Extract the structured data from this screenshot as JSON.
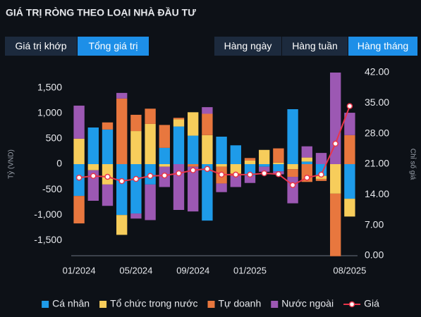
{
  "controls": {
    "left_tabs": [
      "Giá trị khớp",
      "Tổng giá trị"
    ],
    "left_active": 1,
    "right_tabs": [
      "Hàng ngày",
      "Hàng tuần",
      "Hàng tháng"
    ],
    "right_active": 2
  },
  "chart_data": {
    "type": "bar",
    "stacked": true,
    "title": "GIÁ TRỊ RÒNG THEO LOẠI NHÀ ĐẦU TƯ",
    "y_label": "Tỷ (VND)",
    "y2_label": "Chỉ số giá",
    "categories": [
      "01/2024",
      null,
      null,
      null,
      "05/2024",
      null,
      null,
      null,
      "09/2024",
      null,
      null,
      null,
      "01/2025",
      null,
      null,
      null,
      null,
      null,
      null,
      "08/2025"
    ],
    "series": [
      {
        "name": "Cá nhân",
        "color": "#1e9be9",
        "values": [
          -625,
          720,
          680,
          -1000,
          -970,
          -400,
          320,
          740,
          560,
          -1110,
          540,
          370,
          -230,
          -50,
          -140,
          1080,
          50,
          -230,
          0,
          -680
        ]
      },
      {
        "name": "Tổ chức trong nước",
        "color": "#f7cd5b",
        "values": [
          500,
          -120,
          -400,
          -390,
          650,
          790,
          -50,
          140,
          460,
          570,
          -50,
          -180,
          70,
          280,
          30,
          -100,
          80,
          -60,
          -580,
          -350
        ]
      },
      {
        "name": "Tự doanh",
        "color": "#e8773e",
        "values": [
          -540,
          0,
          140,
          1290,
          320,
          300,
          450,
          30,
          -50,
          420,
          -330,
          -50,
          50,
          0,
          280,
          -150,
          -350,
          -40,
          -1230,
          570
        ]
      },
      {
        "name": "Nước ngoài",
        "color": "#9c58b3",
        "values": [
          650,
          -600,
          -420,
          110,
          -100,
          -700,
          -400,
          -900,
          -880,
          130,
          -170,
          -220,
          -140,
          -100,
          -60,
          -520,
          220,
          220,
          1800,
          440
        ]
      },
      {
        "name": "Giá",
        "color": "#e8354a",
        "type": "line",
        "axis": "y2",
        "values": [
          17.9,
          18.3,
          18.1,
          17.1,
          17.6,
          18.3,
          18.4,
          18.9,
          19.6,
          19.9,
          18.6,
          18.6,
          18.6,
          18.9,
          18.7,
          16.2,
          17.9,
          18.6,
          25.7,
          34.3
        ]
      }
    ],
    "ylim": [
      -1800,
      1800
    ],
    "yticks": [
      {
        "value": -1500,
        "label": "-1,500"
      },
      {
        "value": -1000,
        "label": "-1,000"
      },
      -500,
      0,
      500,
      {
        "value": 1000,
        "label": "1,000"
      },
      {
        "value": 1500,
        "label": "1,500"
      }
    ],
    "y2lim": [
      0,
      42
    ],
    "y2ticks": [
      {
        "value": 0,
        "label": "0.00"
      },
      {
        "value": 7,
        "label": "7.00"
      },
      {
        "value": 14,
        "label": "14.00"
      },
      {
        "value": 21,
        "label": "21.00"
      },
      {
        "value": 28,
        "label": "28.00"
      },
      {
        "value": 35,
        "label": "35.00"
      },
      {
        "value": 42,
        "label": "42.00"
      }
    ],
    "grid": false
  }
}
